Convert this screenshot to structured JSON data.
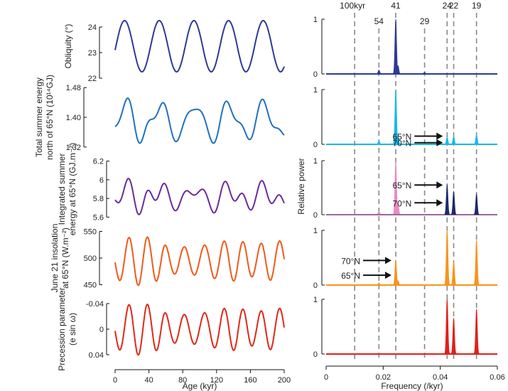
{
  "chart_data": {
    "type": "line",
    "left": {
      "xlabel": "Age (kyr)",
      "xlim": [
        0,
        200
      ],
      "xticks": [
        "0",
        "40",
        "80",
        "120",
        "160",
        "200"
      ],
      "xtick_values": [
        0,
        40,
        80,
        120,
        160,
        200
      ],
      "panels": [
        {
          "id": "obliquity",
          "color": "#2e3a94",
          "ylabel_lines": [
            "Obliquity (°)"
          ],
          "ylim": [
            22,
            24.5
          ],
          "yticks": [
            "22",
            "23",
            "24"
          ],
          "ytick_values": [
            22,
            23,
            24
          ],
          "reversed": false,
          "curve": {
            "kind": "obliquity",
            "mean": 23.25,
            "amplitude": 1.0,
            "period_kyr": 41
          }
        },
        {
          "id": "total-summer-energy",
          "color": "#2070c0",
          "ylabel_lines": [
            "Total summer energy",
            "north of 65°N (10¹⁴GJ)"
          ],
          "ylim": [
            1.31,
            1.49
          ],
          "yticks": [
            "1.32",
            "1.40",
            "1.48"
          ],
          "ytick_values": [
            1.32,
            1.4,
            1.48
          ],
          "reversed": false,
          "curve": {
            "kind": "mixed-obliquity",
            "mean": 1.39,
            "amplitude": 0.06
          }
        },
        {
          "id": "integrated-summer-energy",
          "color": "#6a2a9c",
          "ylabel_lines": [
            "Integrated summer",
            "energy at 65°N (GJ.m⁻²)"
          ],
          "ylim": [
            5.55,
            6.25
          ],
          "yticks": [
            "5.6",
            "5.8",
            "6",
            "6.2"
          ],
          "ytick_values": [
            5.6,
            5.8,
            6.0,
            6.2
          ],
          "reversed": false,
          "curve": {
            "kind": "mixed-precession",
            "mean": 5.82,
            "amplitude": 0.2
          }
        },
        {
          "id": "june21-insolation",
          "color": "#ee5a1a",
          "ylabel_lines": [
            "June 21 insolation",
            "at 65°N (W.m⁻²)"
          ],
          "ylim": [
            440,
            560
          ],
          "yticks": [
            "450",
            "500",
            "550"
          ],
          "ytick_values": [
            450,
            500,
            550
          ],
          "reversed": false,
          "curve": {
            "kind": "precession",
            "mean": 495,
            "amplitude": 40
          }
        },
        {
          "id": "precession-parameter",
          "color": "#e02818",
          "ylabel_lines": [
            "Precession parameter",
            "(e sin ω)"
          ],
          "ylim": [
            -0.05,
            0.05
          ],
          "yticks": [
            "-0.04",
            "0",
            "0.04"
          ],
          "ytick_values": [
            -0.04,
            0,
            0.04
          ],
          "reversed": true,
          "curve": {
            "kind": "precession",
            "mean": 0,
            "amplitude": -0.035
          }
        }
      ]
    },
    "right": {
      "xlabel": "Frequency (/kyr)",
      "ylabel": "Relative power",
      "xlim": [
        0,
        0.06
      ],
      "xticks": [
        "0",
        "0.02",
        "0.04",
        "0.06"
      ],
      "xtick_values": [
        0,
        0.02,
        0.04,
        0.06
      ],
      "period_lines": [
        {
          "label": "100kyr",
          "freq": 0.01
        },
        {
          "label": "54",
          "freq": 0.0185
        },
        {
          "label": "41",
          "freq": 0.0244
        },
        {
          "label": "29",
          "freq": 0.0345
        },
        {
          "label": "24",
          "freq": 0.0424
        },
        {
          "label": "22",
          "freq": 0.0447
        },
        {
          "label": "19",
          "freq": 0.0527
        }
      ],
      "panels": [
        {
          "id": "spec-obliquity",
          "yticks": [
            "0",
            "1"
          ],
          "layers": [
            {
              "color": "#2e3a94",
              "peaks": [
                [
                  0.0185,
                  0.07
                ],
                [
                  0.0244,
                  1.0
                ],
                [
                  0.0252,
                  0.15
                ],
                [
                  0.0345,
                  0.03
                ]
              ]
            }
          ]
        },
        {
          "id": "spec-total-summer-energy",
          "yticks": [
            "0",
            "1"
          ],
          "layers": [
            {
              "color": "#1ab8e8",
              "peaks": [
                [
                  0.0185,
                  0.06
                ],
                [
                  0.0244,
                  1.0
                ],
                [
                  0.0252,
                  0.15
                ],
                [
                  0.0424,
                  0.13
                ],
                [
                  0.0447,
                  0.14
                ],
                [
                  0.0527,
                  0.17
                ]
              ]
            }
          ],
          "annotations": [
            {
              "label": "65°N",
              "freq": 0.0424,
              "power": 0.15
            },
            {
              "label": "70°N",
              "freq": 0.0424,
              "power": 0.03
            }
          ]
        },
        {
          "id": "spec-integrated-summer-energy",
          "yticks": [
            "0",
            "1"
          ],
          "layers": [
            {
              "color": "#ec8ac4",
              "peaks": [
                [
                  0.0185,
                  0.06
                ],
                [
                  0.0244,
                  0.98
                ],
                [
                  0.0252,
                  0.18
                ],
                [
                  0.0424,
                  0.12
                ],
                [
                  0.0447,
                  0.09
                ],
                [
                  0.0527,
                  0.06
                ]
              ]
            },
            {
              "color": "#1c2a6a",
              "peaks": [
                [
                  0.0424,
                  0.55
                ],
                [
                  0.0447,
                  0.43
                ],
                [
                  0.0527,
                  0.38
                ]
              ]
            }
          ],
          "annotations": [
            {
              "label": "65°N",
              "freq": 0.0424,
              "power": 0.55
            },
            {
              "label": "70°N",
              "freq": 0.0424,
              "power": 0.22
            }
          ]
        },
        {
          "id": "spec-june21-insolation",
          "yticks": [
            "0",
            "1"
          ],
          "layers": [
            {
              "color": "#f7941d",
              "peaks": [
                [
                  0.0185,
                  0.04
                ],
                [
                  0.0244,
                  0.45
                ],
                [
                  0.0252,
                  0.08
                ],
                [
                  0.0424,
                  1.0
                ],
                [
                  0.0447,
                  0.42
                ],
                [
                  0.0527,
                  0.82
                ]
              ]
            }
          ],
          "annotations": [
            {
              "label": "70°N",
              "freq": 0.0244,
              "power": 0.45
            },
            {
              "label": "65°N",
              "freq": 0.0244,
              "power": 0.18
            }
          ]
        },
        {
          "id": "spec-precession",
          "yticks": [
            "0",
            "1"
          ],
          "layers": [
            {
              "color": "#e0201a",
              "peaks": [
                [
                  0.0424,
                  1.0
                ],
                [
                  0.0447,
                  0.65
                ],
                [
                  0.0527,
                  0.82
                ]
              ]
            }
          ]
        }
      ]
    }
  }
}
